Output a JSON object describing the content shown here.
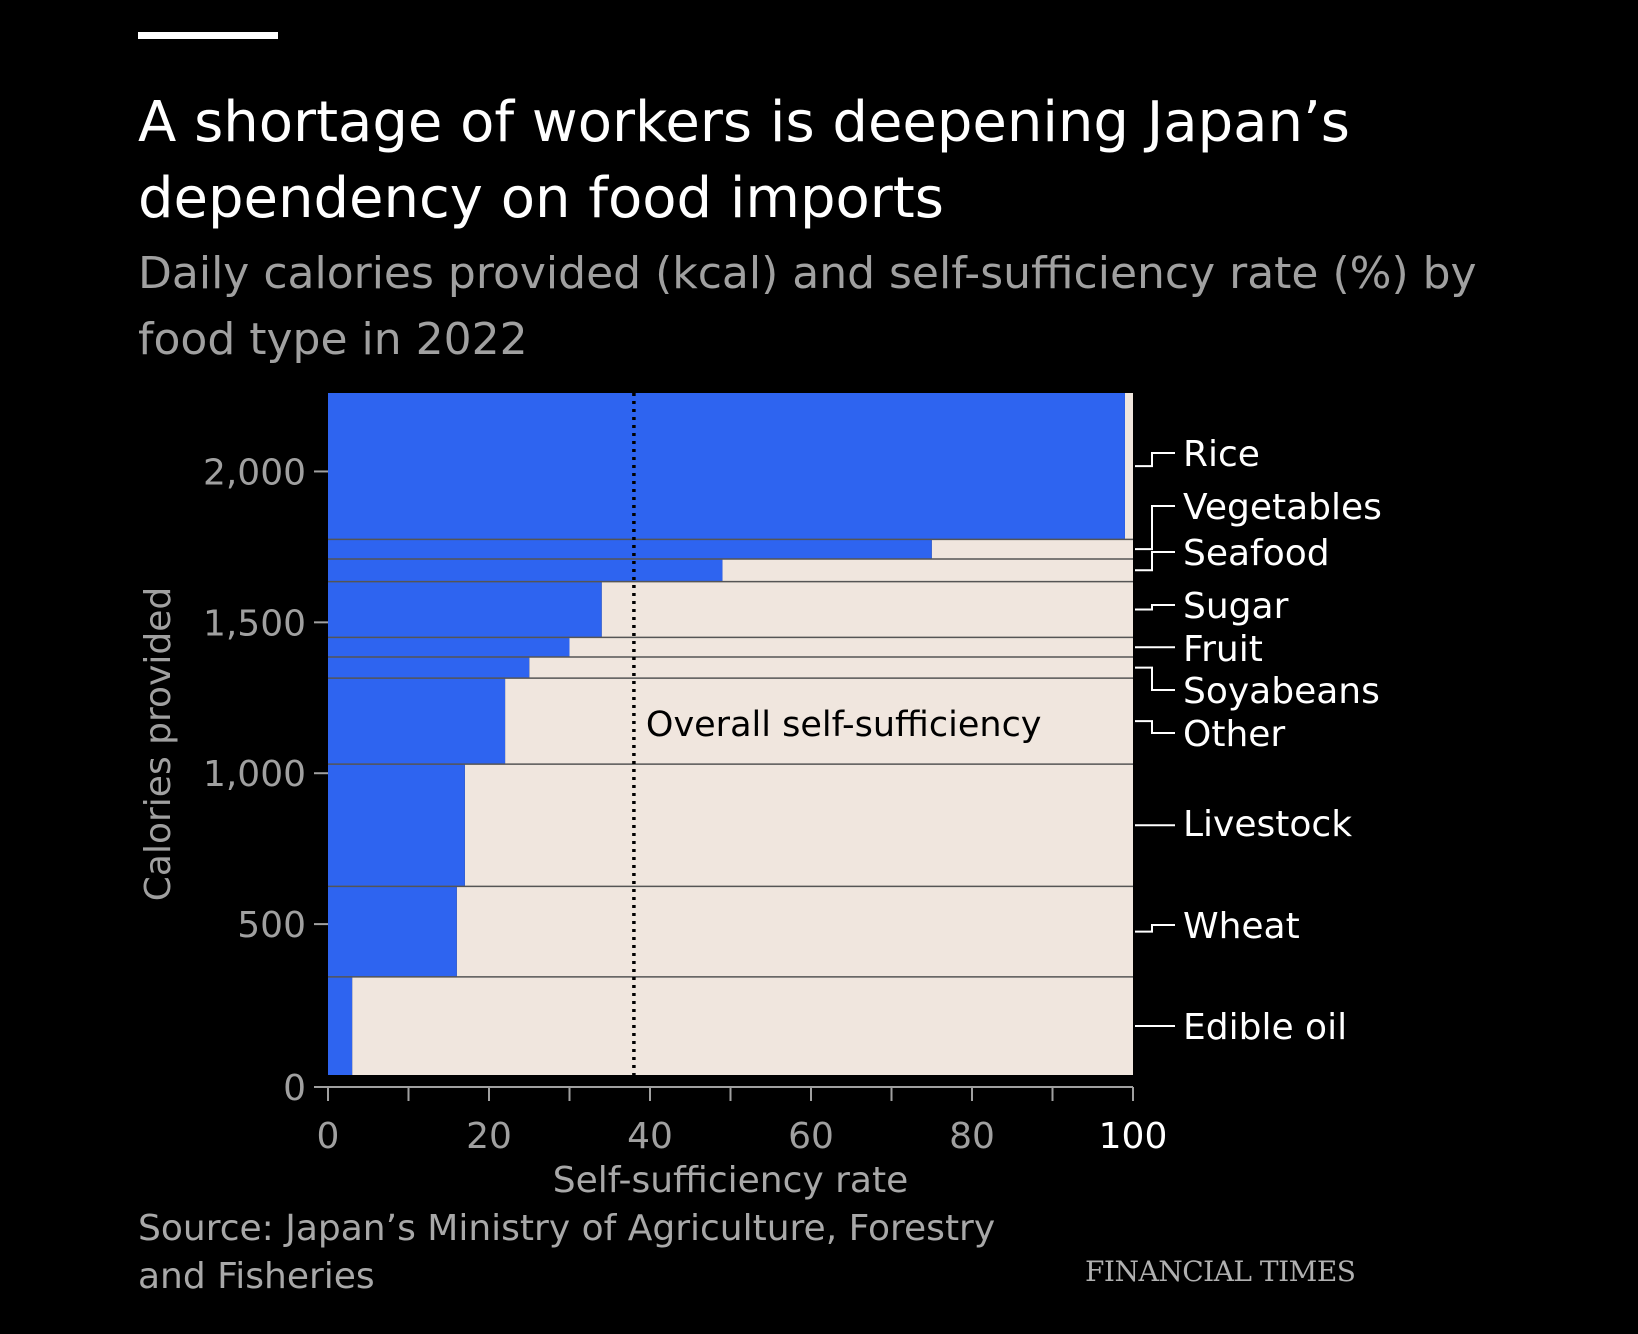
{
  "header": {
    "title": "A shortage of workers is deepening Japan’s dependency on food imports",
    "subtitle": "Daily calories provided (kcal) and self-sufficiency rate (%) by food type in 2022"
  },
  "footer": {
    "source": "Source: Japan’s Ministry of Agriculture, Forestry and Fisheries",
    "brand": "FINANCIAL TIMES"
  },
  "colors": {
    "domestic": "#2e64f0",
    "imported": "#f0e6de",
    "background": "#000000",
    "divider": "#555555"
  },
  "chart_data": {
    "type": "bar",
    "variant": "marimekko (stacked variable-width horizontal bars)",
    "xlabel": "Self-sufficiency rate",
    "ylabel": "Calories provided",
    "xlim": [
      0,
      100
    ],
    "ylim": [
      0,
      2260
    ],
    "xticks": [
      0,
      20,
      40,
      60,
      80,
      100
    ],
    "xtick_labels": [
      "0",
      "20",
      "40",
      "60",
      "80",
      "100"
    ],
    "yticks": [
      0,
      500,
      1000,
      1500,
      2000
    ],
    "ytick_labels": [
      "0",
      "500",
      "1,000",
      "1,500",
      "2,000"
    ],
    "series": [
      {
        "name": "Edible oil",
        "calories_from": 0,
        "calories_to": 325,
        "self_sufficiency": 3
      },
      {
        "name": "Wheat",
        "calories_from": 325,
        "calories_to": 625,
        "self_sufficiency": 16
      },
      {
        "name": "Livestock",
        "calories_from": 625,
        "calories_to": 1030,
        "self_sufficiency": 17
      },
      {
        "name": "Other",
        "calories_from": 1030,
        "calories_to": 1315,
        "self_sufficiency": 22
      },
      {
        "name": "Soyabeans",
        "calories_from": 1315,
        "calories_to": 1385,
        "self_sufficiency": 25
      },
      {
        "name": "Fruit",
        "calories_from": 1385,
        "calories_to": 1450,
        "self_sufficiency": 30
      },
      {
        "name": "Sugar",
        "calories_from": 1450,
        "calories_to": 1635,
        "self_sufficiency": 34
      },
      {
        "name": "Seafood",
        "calories_from": 1635,
        "calories_to": 1710,
        "self_sufficiency": 49
      },
      {
        "name": "Vegetables",
        "calories_from": 1710,
        "calories_to": 1775,
        "self_sufficiency": 75
      },
      {
        "name": "Rice",
        "calories_from": 1775,
        "calories_to": 2260,
        "self_sufficiency": 99
      }
    ],
    "reference_line": {
      "label": "Overall self-sufficiency",
      "x": 38,
      "style": "dotted"
    },
    "grid": false,
    "legend": "none (labels at right)"
  }
}
